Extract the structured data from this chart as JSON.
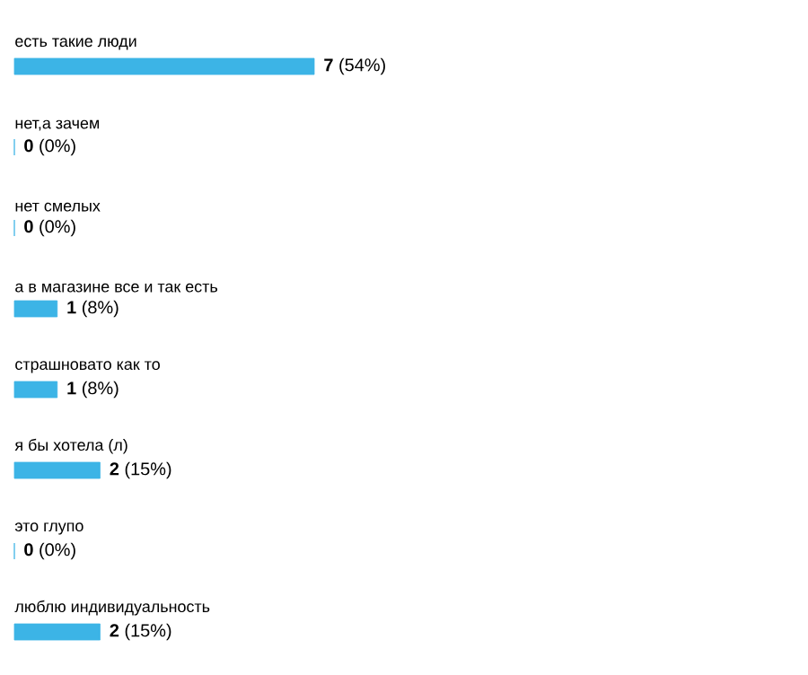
{
  "chart_data": {
    "type": "bar",
    "orientation": "horizontal",
    "color": "#3cb4e6",
    "categories": [
      "есть такие люди",
      "нет,а зачем",
      "нет смелых",
      "а в магазине все и так есть",
      "страшновато как то",
      "я бы хотела (л)",
      "это глупо",
      "люблю индивидуальность"
    ],
    "values": [
      7,
      0,
      0,
      1,
      1,
      2,
      0,
      2
    ],
    "value_labels": [
      "**7** (54%)",
      "**0** (0%)",
      "**0** (0%)",
      "**1** (8%)",
      "**1** (8%)",
      "**2** (15%)",
      "**0** (0%)",
      "**2** (15%)"
    ]
  }
}
